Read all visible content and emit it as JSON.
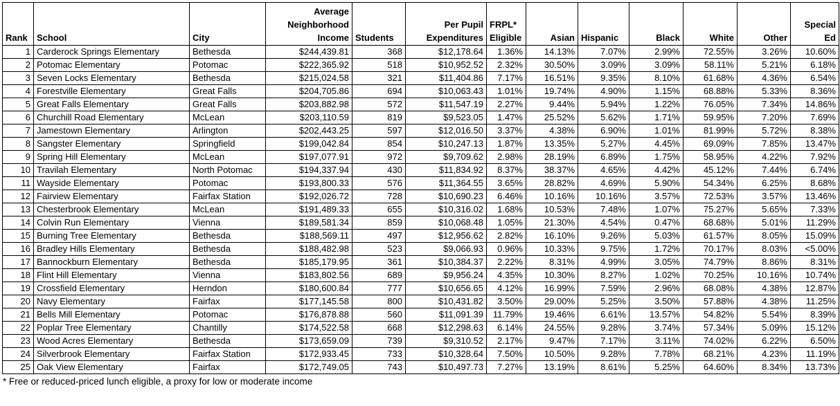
{
  "colors": {
    "background": "#ffffff",
    "border": "#000000",
    "text": "#000000"
  },
  "table": {
    "columns": [
      {
        "id": "rank",
        "label": "Rank"
      },
      {
        "id": "school",
        "label": "School"
      },
      {
        "id": "city",
        "label": "City"
      },
      {
        "id": "avg_neighborhood_income",
        "label": "Average\nNeighborhood\nIncome"
      },
      {
        "id": "students",
        "label": "Students"
      },
      {
        "id": "per_pupil_expenditures",
        "label": "Per Pupil\nExpenditures"
      },
      {
        "id": "frpl_eligible",
        "label": "FRPL*\nEligible"
      },
      {
        "id": "asian",
        "label": "Asian"
      },
      {
        "id": "hispanic",
        "label": "Hispanic"
      },
      {
        "id": "black",
        "label": "Black"
      },
      {
        "id": "white",
        "label": "White"
      },
      {
        "id": "other",
        "label": "Other"
      },
      {
        "id": "special_ed",
        "label": "Special\nEd"
      }
    ],
    "rows": [
      [
        "1",
        "Carderock Springs Elementary",
        "Bethesda",
        "$244,439.81",
        "368",
        "$12,178.64",
        "1.36%",
        "14.13%",
        "7.07%",
        "2.99%",
        "72.55%",
        "3.26%",
        "10.60%"
      ],
      [
        "2",
        "Potomac Elementary",
        "Potomac",
        "$222,365.92",
        "518",
        "$10,952.52",
        "2.32%",
        "30.50%",
        "3.09%",
        "3.09%",
        "58.11%",
        "5.21%",
        "6.18%"
      ],
      [
        "3",
        "Seven Locks Elementary",
        "Bethesda",
        "$215,024.58",
        "321",
        "$11,404.86",
        "7.17%",
        "16.51%",
        "9.35%",
        "8.10%",
        "61.68%",
        "4.36%",
        "6.54%"
      ],
      [
        "4",
        "Forestville Elementary",
        "Great Falls",
        "$204,705.86",
        "694",
        "$10,063.43",
        "1.01%",
        "19.74%",
        "4.90%",
        "1.15%",
        "68.88%",
        "5.33%",
        "8.36%"
      ],
      [
        "5",
        "Great Falls Elementary",
        "Great Falls",
        "$203,882.98",
        "572",
        "$11,547.19",
        "2.27%",
        "9.44%",
        "5.94%",
        "1.22%",
        "76.05%",
        "7.34%",
        "14.86%"
      ],
      [
        "6",
        "Churchill Road Elementary",
        "McLean",
        "$203,110.59",
        "819",
        "$9,523.05",
        "1.47%",
        "25.52%",
        "5.62%",
        "1.71%",
        "59.95%",
        "7.20%",
        "7.69%"
      ],
      [
        "7",
        "Jamestown Elementary",
        "Arlington",
        "$202,443.25",
        "597",
        "$12,016.50",
        "3.37%",
        "4.38%",
        "6.90%",
        "1.01%",
        "81.99%",
        "5.72%",
        "8.38%"
      ],
      [
        "8",
        "Sangster Elementary",
        "Springfield",
        "$199,042.84",
        "854",
        "$10,247.13",
        "1.87%",
        "13.35%",
        "5.27%",
        "4.45%",
        "69.09%",
        "7.85%",
        "13.47%"
      ],
      [
        "9",
        "Spring Hill Elementary",
        "McLean",
        "$197,077.91",
        "972",
        "$9,709.62",
        "2.98%",
        "28.19%",
        "6.89%",
        "1.75%",
        "58.95%",
        "4.22%",
        "7.92%"
      ],
      [
        "10",
        "Travilah Elementary",
        "North Potomac",
        "$194,337.94",
        "430",
        "$11,834.92",
        "8.37%",
        "38.37%",
        "4.65%",
        "4.42%",
        "45.12%",
        "7.44%",
        "6.74%"
      ],
      [
        "11",
        "Wayside Elementary",
        "Potomac",
        "$193,800.33",
        "576",
        "$11,364.55",
        "3.65%",
        "28.82%",
        "4.69%",
        "5.90%",
        "54.34%",
        "6.25%",
        "8.68%"
      ],
      [
        "12",
        "Fairview Elementary",
        "Fairfax Station",
        "$192,026.72",
        "728",
        "$10,690.23",
        "6.46%",
        "10.16%",
        "10.16%",
        "3.57%",
        "72.53%",
        "3.57%",
        "13.46%"
      ],
      [
        "13",
        "Chesterbrook Elementary",
        "McLean",
        "$191,489.33",
        "655",
        "$10,316.02",
        "1.68%",
        "10.53%",
        "7.48%",
        "1.07%",
        "75.27%",
        "5.65%",
        "7.33%"
      ],
      [
        "14",
        "Colvin Run Elementary",
        "Vienna",
        "$189,581.34",
        "859",
        "$10,068.48",
        "1.05%",
        "21.30%",
        "4.54%",
        "0.47%",
        "68.68%",
        "5.01%",
        "11.29%"
      ],
      [
        "15",
        "Burning Tree Elementary",
        "Bethesda",
        "$188,569.11",
        "497",
        "$12,956.62",
        "2.82%",
        "16.10%",
        "9.26%",
        "5.03%",
        "61.57%",
        "8.05%",
        "15.09%"
      ],
      [
        "16",
        "Bradley Hills Elementary",
        "Bethesda",
        "$188,482.98",
        "523",
        "$9,066.93",
        "0.96%",
        "10.33%",
        "9.75%",
        "1.72%",
        "70.17%",
        "8.03%",
        "<5.00%"
      ],
      [
        "17",
        "Bannockburn Elementary",
        "Bethesda",
        "$185,179.95",
        "361",
        "$10,384.37",
        "2.22%",
        "8.31%",
        "4.99%",
        "3.05%",
        "74.79%",
        "8.86%",
        "8.31%"
      ],
      [
        "18",
        "Flint Hill Elementary",
        "Vienna",
        "$183,802.56",
        "689",
        "$9,956.24",
        "4.35%",
        "10.30%",
        "8.27%",
        "1.02%",
        "70.25%",
        "10.16%",
        "10.74%"
      ],
      [
        "19",
        "Crossfield Elementary",
        "Herndon",
        "$180,600.84",
        "777",
        "$10,656.65",
        "4.12%",
        "16.99%",
        "7.59%",
        "2.96%",
        "68.08%",
        "4.38%",
        "12.87%"
      ],
      [
        "20",
        "Navy Elementary",
        "Fairfax",
        "$177,145.58",
        "800",
        "$10,431.82",
        "3.50%",
        "29.00%",
        "5.25%",
        "3.50%",
        "57.88%",
        "4.38%",
        "11.25%"
      ],
      [
        "21",
        "Bells Mill Elementary",
        "Potomac",
        "$176,878.88",
        "560",
        "$11,091.39",
        "11.79%",
        "19.46%",
        "6.61%",
        "13.57%",
        "54.82%",
        "5.54%",
        "8.39%"
      ],
      [
        "22",
        "Poplar Tree Elementary",
        "Chantilly",
        "$174,522.58",
        "668",
        "$12,298.63",
        "6.14%",
        "24.55%",
        "9.28%",
        "3.74%",
        "57.34%",
        "5.09%",
        "15.12%"
      ],
      [
        "23",
        "Wood Acres Elementary",
        "Bethesda",
        "$173,659.09",
        "739",
        "$9,310.52",
        "2.17%",
        "9.47%",
        "7.17%",
        "3.11%",
        "74.02%",
        "6.22%",
        "6.50%"
      ],
      [
        "24",
        "Silverbrook Elementary",
        "Fairfax Station",
        "$172,933.45",
        "733",
        "$10,328.64",
        "7.50%",
        "10.50%",
        "9.28%",
        "7.78%",
        "68.21%",
        "4.23%",
        "11.19%"
      ],
      [
        "25",
        "Oak View Elementary",
        "Fairfax",
        "$172,749.05",
        "743",
        "$10,497.73",
        "7.27%",
        "13.19%",
        "8.61%",
        "5.25%",
        "64.60%",
        "8.34%",
        "13.73%"
      ]
    ]
  },
  "footnote": "* Free or reduced-priced lunch eligible, a proxy for low or moderate income"
}
